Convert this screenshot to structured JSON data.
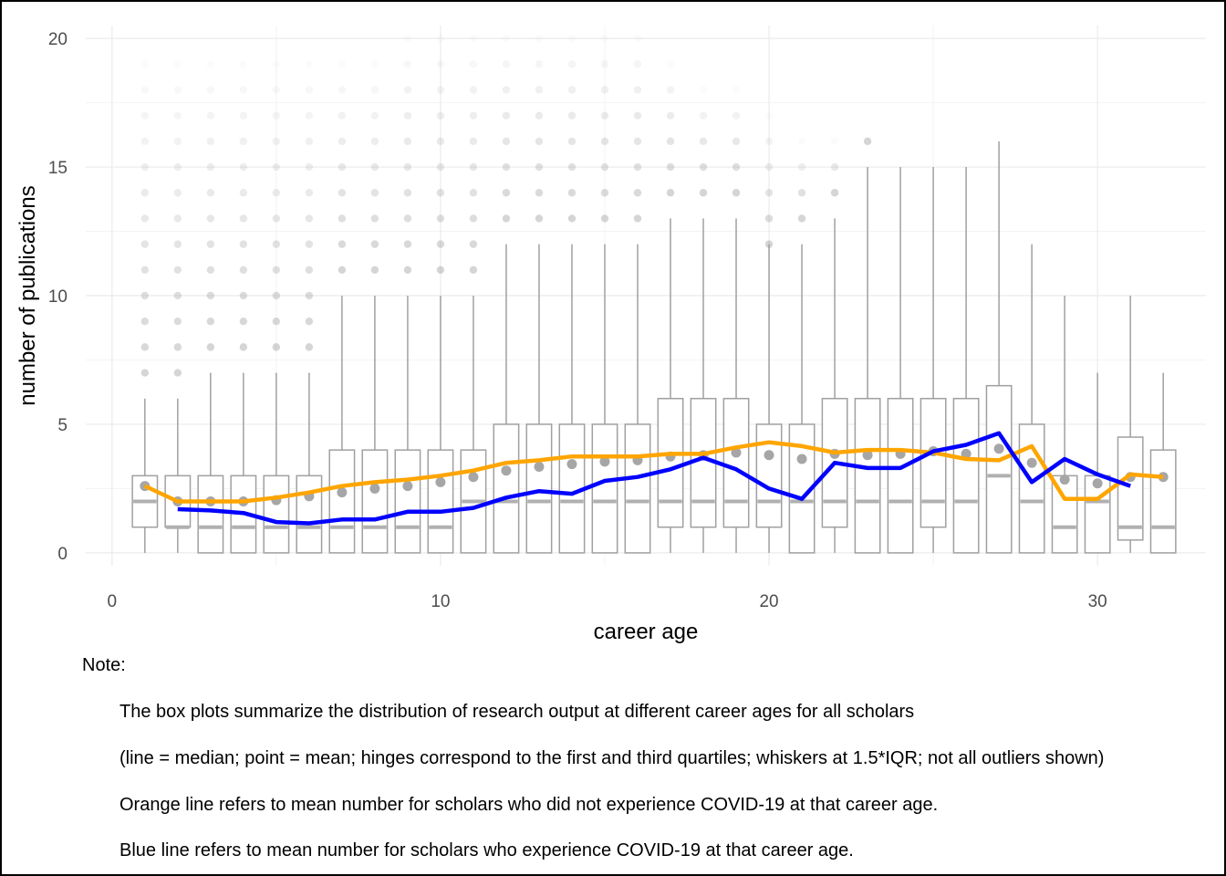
{
  "chart_data": {
    "type": "box",
    "xlabel": "career age",
    "ylabel": "number of publications",
    "xlim": [
      -0.8,
      33.3
    ],
    "ylim": [
      -0.5,
      20.5
    ],
    "x_ticks": [
      0,
      10,
      20,
      30
    ],
    "y_ticks": [
      0,
      5,
      10,
      15,
      20
    ],
    "grid": true,
    "boxes": [
      {
        "x": 1,
        "q1": 1,
        "median": 2,
        "q3": 3,
        "lo": 0,
        "hi": 6,
        "mean": 2.6
      },
      {
        "x": 2,
        "q1": 1,
        "median": 1,
        "q3": 3,
        "lo": 0,
        "hi": 6,
        "mean": 2.0
      },
      {
        "x": 3,
        "q1": 0,
        "median": 1,
        "q3": 3,
        "lo": 0,
        "hi": 7,
        "mean": 2.0
      },
      {
        "x": 4,
        "q1": 0,
        "median": 1,
        "q3": 3,
        "lo": 0,
        "hi": 7,
        "mean": 2.0
      },
      {
        "x": 5,
        "q1": 0,
        "median": 1,
        "q3": 3,
        "lo": 0,
        "hi": 7,
        "mean": 2.05
      },
      {
        "x": 6,
        "q1": 0,
        "median": 1,
        "q3": 3,
        "lo": 0,
        "hi": 7,
        "mean": 2.2
      },
      {
        "x": 7,
        "q1": 0,
        "median": 1,
        "q3": 4,
        "lo": 0,
        "hi": 10,
        "mean": 2.35
      },
      {
        "x": 8,
        "q1": 0,
        "median": 1,
        "q3": 4,
        "lo": 0,
        "hi": 10,
        "mean": 2.5
      },
      {
        "x": 9,
        "q1": 0,
        "median": 1,
        "q3": 4,
        "lo": 0,
        "hi": 10,
        "mean": 2.6
      },
      {
        "x": 10,
        "q1": 0,
        "median": 1,
        "q3": 4,
        "lo": 0,
        "hi": 10,
        "mean": 2.75
      },
      {
        "x": 11,
        "q1": 0,
        "median": 2,
        "q3": 4,
        "lo": 0,
        "hi": 10,
        "mean": 2.95
      },
      {
        "x": 12,
        "q1": 0,
        "median": 2,
        "q3": 5,
        "lo": 0,
        "hi": 12,
        "mean": 3.2
      },
      {
        "x": 13,
        "q1": 0,
        "median": 2,
        "q3": 5,
        "lo": 0,
        "hi": 12,
        "mean": 3.35
      },
      {
        "x": 14,
        "q1": 0,
        "median": 2,
        "q3": 5,
        "lo": 0,
        "hi": 12,
        "mean": 3.45
      },
      {
        "x": 15,
        "q1": 0,
        "median": 2,
        "q3": 5,
        "lo": 0,
        "hi": 12,
        "mean": 3.55
      },
      {
        "x": 16,
        "q1": 0,
        "median": 2,
        "q3": 5,
        "lo": 0,
        "hi": 12,
        "mean": 3.6
      },
      {
        "x": 17,
        "q1": 1,
        "median": 2,
        "q3": 6,
        "lo": 0,
        "hi": 13,
        "mean": 3.75
      },
      {
        "x": 18,
        "q1": 1,
        "median": 2,
        "q3": 6,
        "lo": 0,
        "hi": 13,
        "mean": 3.8
      },
      {
        "x": 19,
        "q1": 1,
        "median": 2,
        "q3": 6,
        "lo": 0,
        "hi": 13,
        "mean": 3.9
      },
      {
        "x": 20,
        "q1": 1,
        "median": 2,
        "q3": 5,
        "lo": 0,
        "hi": 12,
        "mean": 3.8
      },
      {
        "x": 21,
        "q1": 0,
        "median": 2,
        "q3": 5,
        "lo": 0,
        "hi": 12,
        "mean": 3.65
      },
      {
        "x": 22,
        "q1": 1,
        "median": 2,
        "q3": 6,
        "lo": 0,
        "hi": 13,
        "mean": 3.85
      },
      {
        "x": 23,
        "q1": 0,
        "median": 2,
        "q3": 6,
        "lo": 0,
        "hi": 15,
        "mean": 3.8
      },
      {
        "x": 24,
        "q1": 0,
        "median": 2,
        "q3": 6,
        "lo": 0,
        "hi": 15,
        "mean": 3.85
      },
      {
        "x": 25,
        "q1": 1,
        "median": 2,
        "q3": 6,
        "lo": 0,
        "hi": 15,
        "mean": 3.95
      },
      {
        "x": 26,
        "q1": 0,
        "median": 2,
        "q3": 6,
        "lo": 0,
        "hi": 15,
        "mean": 3.85
      },
      {
        "x": 27,
        "q1": 0,
        "median": 3,
        "q3": 6.5,
        "lo": 0,
        "hi": 16,
        "mean": 4.05
      },
      {
        "x": 28,
        "q1": 0,
        "median": 2,
        "q3": 5,
        "lo": 0,
        "hi": 12,
        "mean": 3.5
      },
      {
        "x": 29,
        "q1": 0,
        "median": 1,
        "q3": 3,
        "lo": 0,
        "hi": 10,
        "mean": 2.85
      },
      {
        "x": 30,
        "q1": 0,
        "median": 2,
        "q3": 3,
        "lo": 0,
        "hi": 7,
        "mean": 2.7
      },
      {
        "x": 31,
        "q1": 0.5,
        "median": 1,
        "q3": 4.5,
        "lo": 0,
        "hi": 10,
        "mean": 2.95
      },
      {
        "x": 32,
        "q1": 0,
        "median": 1,
        "q3": 4,
        "lo": 0,
        "hi": 7,
        "mean": 2.95
      }
    ],
    "outliers": [
      {
        "x": 1,
        "values": [
          7,
          8,
          9,
          10,
          11,
          12,
          13,
          14,
          15,
          16,
          17,
          18,
          19
        ]
      },
      {
        "x": 2,
        "values": [
          7,
          8,
          9,
          10,
          11,
          12,
          13,
          14,
          15,
          16,
          17,
          18,
          19
        ]
      },
      {
        "x": 3,
        "values": [
          8,
          9,
          10,
          11,
          12,
          13,
          14,
          15,
          16,
          17,
          18,
          19
        ]
      },
      {
        "x": 4,
        "values": [
          8,
          9,
          10,
          11,
          12,
          13,
          14,
          15,
          16,
          17,
          18,
          19
        ]
      },
      {
        "x": 5,
        "values": [
          8,
          9,
          10,
          11,
          12,
          13,
          14,
          15,
          16,
          17,
          18,
          19
        ]
      },
      {
        "x": 6,
        "values": [
          8,
          9,
          10,
          11,
          12,
          13,
          14,
          15,
          16,
          17,
          18,
          19
        ]
      },
      {
        "x": 7,
        "values": [
          11,
          12,
          13,
          14,
          15,
          16,
          17,
          18,
          19
        ]
      },
      {
        "x": 8,
        "values": [
          11,
          12,
          13,
          14,
          15,
          16,
          17,
          18,
          19
        ]
      },
      {
        "x": 9,
        "values": [
          11,
          12,
          13,
          14,
          15,
          16,
          17,
          18,
          19,
          20
        ]
      },
      {
        "x": 10,
        "values": [
          11,
          12,
          13,
          14,
          15,
          16,
          17,
          18,
          19,
          20
        ]
      },
      {
        "x": 11,
        "values": [
          11,
          12,
          13,
          14,
          15,
          16,
          17,
          18,
          19,
          20
        ]
      },
      {
        "x": 12,
        "values": [
          13,
          14,
          15,
          16,
          17,
          18,
          19,
          20
        ]
      },
      {
        "x": 13,
        "values": [
          13,
          14,
          15,
          16,
          17,
          18,
          19,
          20
        ]
      },
      {
        "x": 14,
        "values": [
          13,
          14,
          15,
          16,
          17,
          18,
          19,
          20
        ]
      },
      {
        "x": 15,
        "values": [
          13,
          14,
          15,
          16,
          17,
          18,
          19,
          20
        ]
      },
      {
        "x": 16,
        "values": [
          13,
          14,
          15,
          16,
          17,
          18,
          19,
          20
        ]
      },
      {
        "x": 17,
        "values": [
          14,
          15,
          16,
          17,
          18,
          19
        ]
      },
      {
        "x": 18,
        "values": [
          14,
          15,
          16,
          17,
          18
        ]
      },
      {
        "x": 19,
        "values": [
          14,
          15,
          16,
          17,
          18
        ]
      },
      {
        "x": 20,
        "values": [
          12,
          13,
          14,
          15,
          16,
          17
        ]
      },
      {
        "x": 21,
        "values": [
          13,
          14,
          15,
          16
        ]
      },
      {
        "x": 22,
        "values": [
          14,
          15,
          16
        ]
      },
      {
        "x": 23,
        "values": [
          16
        ]
      }
    ],
    "series": [
      {
        "name": "Orange line",
        "color": "#FFA500",
        "x": [
          1,
          2,
          3,
          4,
          5,
          6,
          7,
          8,
          9,
          10,
          11,
          12,
          13,
          14,
          15,
          16,
          17,
          18,
          19,
          20,
          21,
          22,
          23,
          24,
          25,
          26,
          27,
          28,
          29,
          30,
          31,
          32
        ],
        "values": [
          2.6,
          2.0,
          2.0,
          2.0,
          2.15,
          2.35,
          2.6,
          2.75,
          2.85,
          3.0,
          3.2,
          3.5,
          3.6,
          3.75,
          3.75,
          3.75,
          3.85,
          3.85,
          4.1,
          4.3,
          4.15,
          3.9,
          4.0,
          4.0,
          3.9,
          3.65,
          3.6,
          4.15,
          2.1,
          2.1,
          3.05,
          2.95
        ]
      },
      {
        "name": "Blue line",
        "color": "#0000FF",
        "x": [
          2,
          3,
          4,
          5,
          6,
          7,
          8,
          9,
          10,
          11,
          12,
          13,
          14,
          15,
          16,
          17,
          18,
          19,
          20,
          21,
          22,
          23,
          24,
          25,
          26,
          27,
          28,
          29,
          30,
          31
        ],
        "values": [
          1.7,
          1.65,
          1.55,
          1.2,
          1.15,
          1.3,
          1.3,
          1.6,
          1.6,
          1.75,
          2.15,
          2.4,
          2.3,
          2.8,
          2.95,
          3.25,
          3.7,
          3.25,
          2.5,
          2.1,
          3.5,
          3.3,
          3.3,
          3.95,
          4.2,
          4.65,
          2.75,
          3.65,
          3.05,
          2.6
        ]
      }
    ],
    "colors": {
      "box_stroke": "#a0a0a0",
      "median": "#b0b0b0",
      "mean_point": "#a6a6a6",
      "outlier": "#9a9a9a",
      "grid": "#ebebeb"
    }
  },
  "note": {
    "label": "Note:",
    "lines": [
      "The box plots summarize the distribution of research output at different career ages for all scholars",
      "(line = median; point = mean; hinges correspond to the first and third quartiles; whiskers at 1.5*IQR; not all outliers shown)",
      "Orange line refers to mean number for scholars who did not experience COVID-19 at that career age.",
      "Blue line refers to mean number for scholars who experience COVID-19 at that career age."
    ]
  }
}
